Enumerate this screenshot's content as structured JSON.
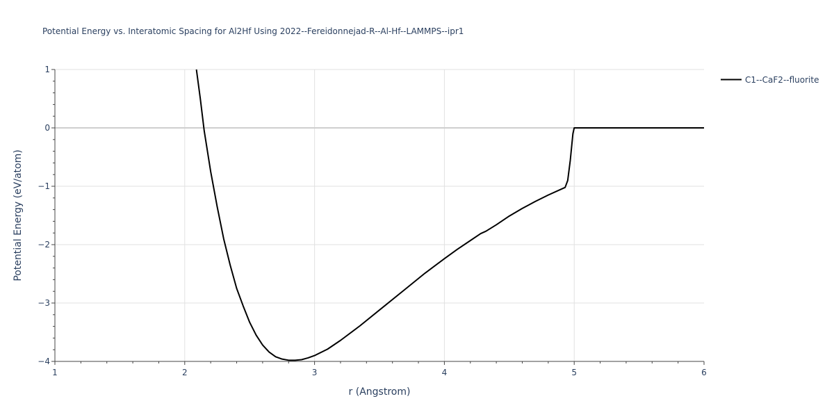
{
  "chart_data": {
    "type": "line",
    "title": "Potential Energy vs. Interatomic Spacing for Al2Hf Using 2022--Fereidonnejad-R--Al-Hf--LAMMPS--ipr1",
    "xlabel": "r (Angstrom)",
    "ylabel": "Potential Energy (eV/atom)",
    "xlim": [
      1,
      6
    ],
    "ylim": [
      -4,
      1
    ],
    "x_ticks": [
      1,
      2,
      3,
      4,
      5,
      6
    ],
    "x_tick_labels": [
      "1",
      "2",
      "3",
      "4",
      "5",
      "6"
    ],
    "y_ticks": [
      1,
      0,
      -1,
      -2,
      -3,
      -4
    ],
    "y_tick_labels": [
      "1",
      "0",
      "−1",
      "−2",
      "−3",
      "−4"
    ],
    "grid": true,
    "zero_line": true,
    "legend_position": "top-right",
    "series": [
      {
        "name": "C1--CaF2--fluorite",
        "color": "#000000",
        "x": [
          2.09,
          2.12,
          2.15,
          2.2,
          2.25,
          2.3,
          2.35,
          2.4,
          2.45,
          2.5,
          2.55,
          2.6,
          2.65,
          2.7,
          2.75,
          2.8,
          2.85,
          2.9,
          2.95,
          3.0,
          3.1,
          3.2,
          3.35,
          3.5,
          3.7,
          3.85,
          4.0,
          4.1,
          4.2,
          4.28,
          4.32,
          4.4,
          4.5,
          4.6,
          4.7,
          4.8,
          4.9,
          4.93,
          4.95,
          4.97,
          4.99,
          5.0,
          5.05,
          5.5,
          6.0
        ],
        "y": [
          1.0,
          0.5,
          -0.05,
          -0.75,
          -1.35,
          -1.9,
          -2.35,
          -2.75,
          -3.05,
          -3.33,
          -3.55,
          -3.72,
          -3.84,
          -3.92,
          -3.96,
          -3.98,
          -3.98,
          -3.97,
          -3.94,
          -3.9,
          -3.79,
          -3.64,
          -3.39,
          -3.12,
          -2.76,
          -2.49,
          -2.24,
          -2.08,
          -1.93,
          -1.81,
          -1.77,
          -1.66,
          -1.51,
          -1.38,
          -1.26,
          -1.15,
          -1.05,
          -1.02,
          -0.9,
          -0.55,
          -0.1,
          0.0,
          0.0,
          0.0,
          0.0
        ]
      }
    ]
  }
}
